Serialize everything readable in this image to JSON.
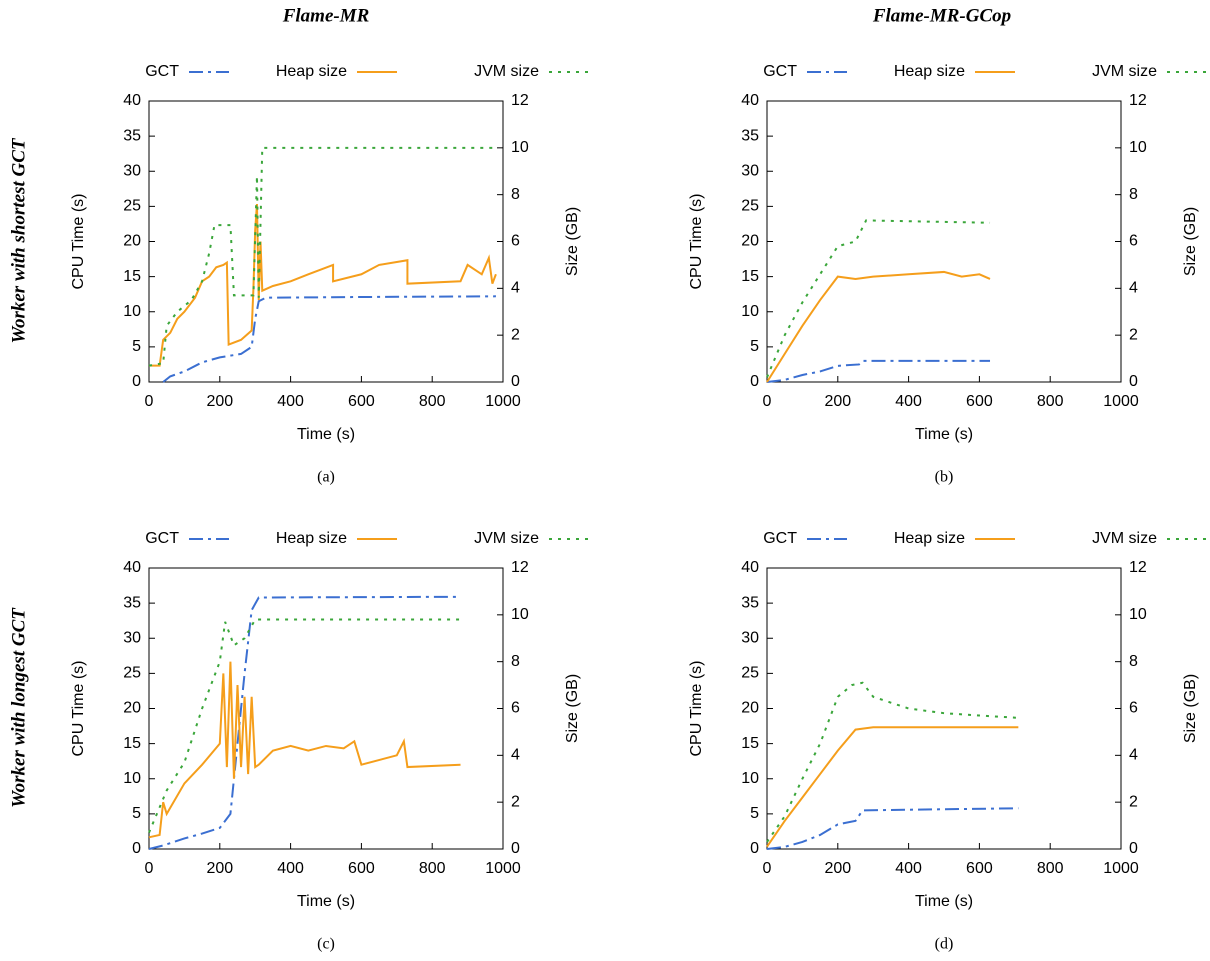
{
  "figure": {
    "columns": [
      "Flame-MR",
      "Flame-MR-GCop"
    ],
    "rows": [
      "Worker with shortest GCT",
      "Worker with longest GCT"
    ]
  },
  "chart_data": [
    {
      "type": "line",
      "caption": "(a)",
      "xlabel": "Time (s)",
      "ylabel": "CPU Time (s)",
      "y2label": "Size (GB)",
      "xlim": [
        0,
        1000
      ],
      "xticks": [
        0,
        200,
        400,
        600,
        800,
        1000
      ],
      "ylim": [
        0,
        40
      ],
      "yticks": [
        0,
        5,
        10,
        15,
        20,
        25,
        30,
        35,
        40
      ],
      "y2lim": [
        0,
        12
      ],
      "y2ticks": [
        0,
        2,
        4,
        6,
        8,
        10,
        12
      ],
      "legend": "top",
      "series": [
        {
          "name": "GCT",
          "color": "#3b6fd1",
          "style": "dash-dot",
          "axis": "y",
          "x": [
            40,
            60,
            100,
            150,
            200,
            260,
            290,
            300,
            310,
            330,
            600,
            980
          ],
          "values": [
            0,
            0.8,
            1.5,
            2.8,
            3.5,
            4,
            5,
            9,
            11.5,
            12,
            12.1,
            12.2
          ]
        },
        {
          "name": "Heap size",
          "color": "#f59e1b",
          "style": "solid",
          "axis": "y2",
          "x": [
            0,
            30,
            40,
            60,
            80,
            100,
            130,
            150,
            170,
            190,
            210,
            220,
            225,
            260,
            290,
            295,
            300,
            305,
            310,
            315,
            320,
            350,
            400,
            450,
            520,
            520,
            600,
            650,
            730,
            730,
            880,
            900,
            940,
            960,
            970,
            980
          ],
          "values": [
            0.7,
            0.7,
            1.8,
            2.1,
            2.7,
            3,
            3.6,
            4.3,
            4.5,
            4.9,
            5,
            5.1,
            1.6,
            1.8,
            2.2,
            4,
            6.5,
            7.6,
            3.5,
            6,
            3.9,
            4.1,
            4.3,
            4.6,
            5,
            4.3,
            4.6,
            5,
            5.2,
            4.2,
            4.3,
            5,
            4.6,
            5.3,
            4.2,
            4.6
          ]
        },
        {
          "name": "JVM size",
          "color": "#3aa63a",
          "style": "dotted",
          "axis": "y2",
          "x": [
            0,
            40,
            50,
            80,
            120,
            150,
            170,
            185,
            230,
            240,
            295,
            305,
            310,
            320,
            980
          ],
          "values": [
            0.7,
            0.8,
            2.4,
            3,
            3.5,
            4.3,
            5.5,
            6.7,
            6.7,
            3.7,
            3.7,
            8.8,
            3.6,
            10,
            10
          ]
        }
      ]
    },
    {
      "type": "line",
      "caption": "(b)",
      "xlabel": "Time (s)",
      "ylabel": "CPU Time (s)",
      "y2label": "Size (GB)",
      "xlim": [
        0,
        1000
      ],
      "xticks": [
        0,
        200,
        400,
        600,
        800,
        1000
      ],
      "ylim": [
        0,
        40
      ],
      "yticks": [
        0,
        5,
        10,
        15,
        20,
        25,
        30,
        35,
        40
      ],
      "y2lim": [
        0,
        12
      ],
      "y2ticks": [
        0,
        2,
        4,
        6,
        8,
        10,
        12
      ],
      "legend": "top",
      "series": [
        {
          "name": "GCT",
          "color": "#3b6fd1",
          "style": "dash-dot",
          "axis": "y",
          "x": [
            0,
            50,
            100,
            150,
            200,
            260,
            270,
            630
          ],
          "values": [
            0,
            0.3,
            1,
            1.5,
            2.3,
            2.5,
            3,
            3
          ]
        },
        {
          "name": "Heap size",
          "color": "#f59e1b",
          "style": "solid",
          "axis": "y2",
          "x": [
            0,
            50,
            100,
            150,
            200,
            250,
            300,
            400,
            500,
            550,
            600,
            630
          ],
          "values": [
            0,
            1.2,
            2.4,
            3.5,
            4.5,
            4.4,
            4.5,
            4.6,
            4.7,
            4.5,
            4.6,
            4.4
          ]
        },
        {
          "name": "JVM size",
          "color": "#3aa63a",
          "style": "dotted",
          "axis": "y2",
          "x": [
            0,
            50,
            100,
            150,
            200,
            250,
            280,
            630
          ],
          "values": [
            0.2,
            2,
            3.4,
            4.6,
            5.8,
            6,
            6.9,
            6.8
          ]
        }
      ]
    },
    {
      "type": "line",
      "caption": "(c)",
      "xlabel": "Time (s)",
      "ylabel": "CPU Time (s)",
      "y2label": "Size (GB)",
      "xlim": [
        0,
        1000
      ],
      "xticks": [
        0,
        200,
        400,
        600,
        800,
        1000
      ],
      "ylim": [
        0,
        40
      ],
      "yticks": [
        0,
        5,
        10,
        15,
        20,
        25,
        30,
        35,
        40
      ],
      "y2lim": [
        0,
        12
      ],
      "y2ticks": [
        0,
        2,
        4,
        6,
        8,
        10,
        12
      ],
      "legend": "top",
      "series": [
        {
          "name": "GCT",
          "color": "#3b6fd1",
          "style": "dash-dot",
          "axis": "y",
          "x": [
            0,
            40,
            100,
            150,
            200,
            230,
            250,
            270,
            290,
            310,
            880
          ],
          "values": [
            0,
            0.5,
            1.5,
            2.2,
            3,
            5,
            15,
            25,
            34,
            35.8,
            35.9
          ]
        },
        {
          "name": "Heap size",
          "color": "#f59e1b",
          "style": "solid",
          "axis": "y2",
          "x": [
            0,
            30,
            40,
            50,
            100,
            150,
            200,
            210,
            220,
            230,
            240,
            250,
            260,
            270,
            280,
            290,
            300,
            310,
            350,
            400,
            450,
            500,
            550,
            580,
            600,
            700,
            720,
            730,
            880
          ],
          "values": [
            0.5,
            0.6,
            2,
            1.5,
            2.8,
            3.6,
            4.5,
            7.5,
            3.5,
            8,
            3,
            7,
            3.5,
            6.5,
            3.2,
            6.5,
            3.5,
            3.6,
            4.2,
            4.4,
            4.2,
            4.4,
            4.3,
            4.6,
            3.6,
            4,
            4.6,
            3.5,
            3.6
          ]
        },
        {
          "name": "JVM size",
          "color": "#3aa63a",
          "style": "dotted",
          "axis": "y2",
          "x": [
            0,
            50,
            100,
            150,
            200,
            215,
            240,
            270,
            300,
            880
          ],
          "values": [
            0.7,
            2.5,
            3.7,
            6,
            8,
            9.7,
            8.7,
            9,
            9.8,
            9.8
          ]
        }
      ]
    },
    {
      "type": "line",
      "caption": "(d)",
      "xlabel": "Time (s)",
      "ylabel": "CPU Time (s)",
      "y2label": "Size (GB)",
      "xlim": [
        0,
        1000
      ],
      "xticks": [
        0,
        200,
        400,
        600,
        800,
        1000
      ],
      "ylim": [
        0,
        40
      ],
      "yticks": [
        0,
        5,
        10,
        15,
        20,
        25,
        30,
        35,
        40
      ],
      "y2lim": [
        0,
        12
      ],
      "y2ticks": [
        0,
        2,
        4,
        6,
        8,
        10,
        12
      ],
      "legend": "top",
      "series": [
        {
          "name": "GCT",
          "color": "#3b6fd1",
          "style": "dash-dot",
          "axis": "y",
          "x": [
            0,
            50,
            100,
            150,
            200,
            250,
            270,
            710
          ],
          "values": [
            0,
            0.3,
            1,
            2,
            3.5,
            4,
            5.5,
            5.8
          ]
        },
        {
          "name": "Heap size",
          "color": "#f59e1b",
          "style": "solid",
          "axis": "y2",
          "x": [
            0,
            50,
            100,
            150,
            200,
            250,
            300,
            710
          ],
          "values": [
            0.1,
            1.2,
            2.2,
            3.2,
            4.2,
            5.1,
            5.2,
            5.2
          ]
        },
        {
          "name": "JVM size",
          "color": "#3aa63a",
          "style": "dotted",
          "axis": "y2",
          "x": [
            0,
            50,
            100,
            150,
            200,
            240,
            270,
            300,
            400,
            500,
            600,
            710
          ],
          "values": [
            0.3,
            1.4,
            3,
            4.5,
            6.5,
            7,
            7.1,
            6.5,
            6,
            5.8,
            5.7,
            5.6
          ]
        }
      ]
    }
  ]
}
